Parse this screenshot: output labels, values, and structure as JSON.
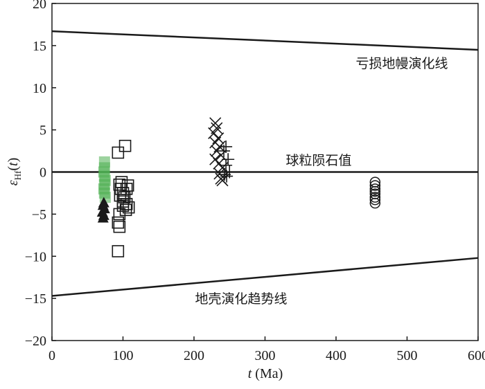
{
  "chart_data": {
    "type": "scatter",
    "xlabel_parts": [
      "t",
      "(Ma)"
    ],
    "ylabel_parts": [
      "ε",
      "Hf",
      "(",
      "t",
      ")"
    ],
    "xlim": [
      0,
      600
    ],
    "ylim": [
      -20,
      20
    ],
    "xticks": [
      0,
      100,
      200,
      300,
      400,
      500,
      600
    ],
    "yticks": [
      {
        "value": -20,
        "label": "−20"
      },
      {
        "value": -15,
        "label": "−15"
      },
      {
        "value": -10,
        "label": "−10"
      },
      {
        "value": -5,
        "label": "−5"
      },
      0,
      5,
      10,
      15,
      20
    ],
    "lines": [
      {
        "label": "亏损地幔演化线",
        "x": [
          0,
          600
        ],
        "values": [
          16.7,
          14.5
        ],
        "color": "#1a1a1a"
      },
      {
        "label": "球粒陨石值",
        "x": [
          0,
          600
        ],
        "values": [
          0,
          0
        ],
        "color": "#1a1a1a"
      },
      {
        "label": "地壳演化趋势线",
        "x": [
          0,
          600
        ],
        "values": [
          -14.7,
          -10.2
        ],
        "color": "#1a1a1a"
      }
    ],
    "series": [
      {
        "marker": "square",
        "color": "#1a1a1a",
        "x": [
          93,
          103,
          95,
          97,
          100,
          102,
          105,
          108,
          95,
          93,
          95,
          93,
          100,
          107,
          98,
          100,
          104,
          96,
          105
        ],
        "values": [
          2.3,
          3.1,
          -1.5,
          -2,
          -2.5,
          -3,
          -3.8,
          -4.2,
          -5,
          -6,
          -6.5,
          -9.4,
          -4,
          -1.6,
          -1.2,
          -3.5,
          -4.5,
          -2.8,
          -2
        ]
      },
      {
        "marker": "x",
        "color": "#1a1a1a",
        "x": [
          230,
          232,
          228,
          234,
          230,
          236,
          232,
          238,
          230,
          235,
          240,
          236,
          238,
          240
        ],
        "values": [
          5.8,
          5.2,
          4.6,
          4,
          3.5,
          3,
          2.5,
          2,
          1.5,
          1,
          0.5,
          -0.2,
          -0.8,
          -1
        ]
      },
      {
        "marker": "plus",
        "color": "#1a1a1a",
        "x": [
          245,
          242,
          248,
          245,
          250,
          246,
          243
        ],
        "values": [
          3,
          2.5,
          1.5,
          0.8,
          0,
          -0.5,
          -0.3
        ]
      },
      {
        "marker": "circle",
        "color": "#1a1a1a",
        "x": [
          455,
          455,
          455,
          455,
          455,
          455,
          455,
          455
        ],
        "values": [
          -1.2,
          -1.6,
          -2,
          -2.3,
          -2.6,
          -3,
          -3.3,
          -3.7
        ]
      },
      {
        "marker": "filled-square",
        "color": "#4caf50",
        "x": [
          74,
          74,
          73,
          74,
          75,
          74,
          73,
          74,
          75
        ],
        "values": [
          1.2,
          0.5,
          0,
          -0.5,
          -1,
          -1.5,
          -2,
          -2.5,
          -3
        ]
      },
      {
        "marker": "triangle",
        "color": "#1a1a1a",
        "x": [
          73,
          72,
          74,
          71,
          73,
          72
        ],
        "values": [
          -3.7,
          -4,
          -4.4,
          -4.8,
          -5.2,
          -5.5
        ]
      }
    ]
  }
}
